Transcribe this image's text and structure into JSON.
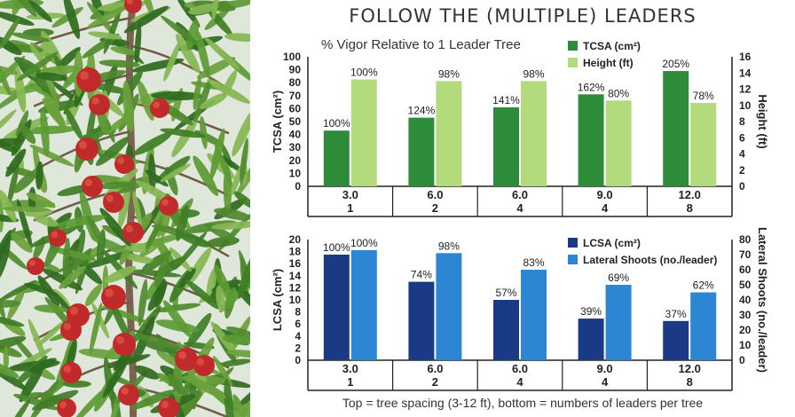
{
  "title": "FOLLOW THE (MULTIPLE) LEADERS",
  "footer": "Top = tree spacing (3-12 ft), bottom = numbers of leaders per tree",
  "colors": {
    "tcsa": "#2e8b3a",
    "height": "#b3db7b",
    "lcsa": "#1b3a86",
    "lateral": "#2d86d3",
    "leaf": "#4f8a2e",
    "fruit": "#c02a2a"
  },
  "chart_data": [
    {
      "type": "bar",
      "subtitle": "% Vigor Relative to 1 Leader Tree",
      "categories": [
        [
          "3.0",
          "1"
        ],
        [
          "6.0",
          "2"
        ],
        [
          "6.0",
          "4"
        ],
        [
          "9.0",
          "4"
        ],
        [
          "12.0",
          "8"
        ]
      ],
      "ylabel_left": "TCSA (cm²)",
      "ylabel_right": "Height (ft)",
      "ylim_left": [
        0,
        100
      ],
      "ylim_right": [
        0,
        16
      ],
      "yticks_left": [
        "0",
        "10",
        "20",
        "30",
        "40",
        "50",
        "60",
        "70",
        "80",
        "90",
        "100"
      ],
      "yticks_right": [
        "0",
        "2",
        "4",
        "6",
        "8",
        "10",
        "12",
        "14",
        "16"
      ],
      "legend_position": "top-right",
      "series": [
        {
          "name": "TCSA (cm²)",
          "axis": "left",
          "color": "#2e8b3a",
          "values": [
            43,
            53,
            61,
            71,
            89
          ],
          "labels": [
            "100%",
            "124%",
            "141%",
            "162%",
            "205%"
          ]
        },
        {
          "name": "Height (ft)",
          "axis": "right",
          "color": "#b3db7b",
          "values": [
            13.2,
            13.0,
            13.0,
            10.6,
            10.3
          ],
          "labels": [
            "100%",
            "98%",
            "98%",
            "80%",
            "78%"
          ]
        }
      ]
    },
    {
      "type": "bar",
      "categories": [
        [
          "3.0",
          "1"
        ],
        [
          "6.0",
          "2"
        ],
        [
          "6.0",
          "4"
        ],
        [
          "9.0",
          "4"
        ],
        [
          "12.0",
          "8"
        ]
      ],
      "ylabel_left": "LCSA (cm²)",
      "ylabel_right": "Lateral Shoots (no./leader)",
      "ylim_left": [
        0,
        20
      ],
      "ylim_right": [
        0,
        80
      ],
      "yticks_left": [
        "0",
        "2",
        "4",
        "6",
        "8",
        "10",
        "12",
        "14",
        "16",
        "18",
        "20"
      ],
      "yticks_right": [
        "0",
        "10",
        "20",
        "30",
        "40",
        "50",
        "60",
        "70",
        "80"
      ],
      "legend_position": "top-right",
      "series": [
        {
          "name": "LCSA (cm²)",
          "axis": "left",
          "color": "#1b3a86",
          "values": [
            17.5,
            13.0,
            10.0,
            6.9,
            6.5
          ],
          "labels": [
            "100%",
            "74%",
            "57%",
            "39%",
            "37%"
          ]
        },
        {
          "name": "Lateral Shoots (no./leader)",
          "axis": "right",
          "color": "#2d86d3",
          "values": [
            73,
            71,
            60,
            50,
            45
          ],
          "labels": [
            "100%",
            "98%",
            "83%",
            "69%",
            "62%"
          ]
        }
      ]
    }
  ]
}
